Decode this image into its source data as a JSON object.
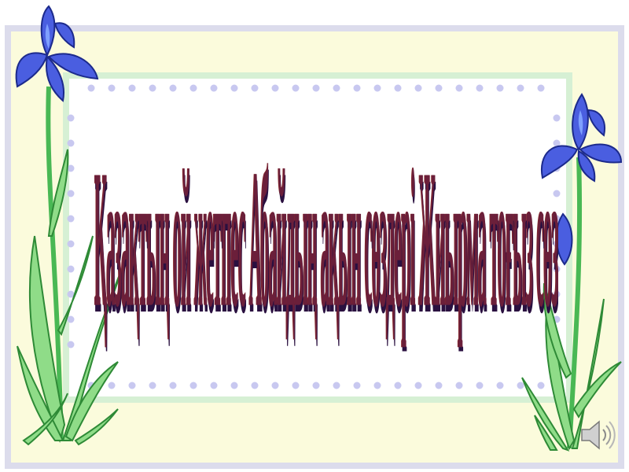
{
  "slide": {
    "title": "Қазақтың ой жетпес Абайдың ақын сөздері Жиырма тоғыз сөз"
  },
  "decor": {
    "frame_color": "#dcdcec",
    "panel_color": "#fbfbdc",
    "inner_border_color": "#d6f0d4",
    "dot_color": "#c8c8f0",
    "iris_color": "#4a5ee0",
    "stem_color": "#3fb04a",
    "title_color": "#6b1f3a"
  },
  "icons": {
    "left_flower": "iris-flower-icon",
    "right_flower": "iris-flower-icon",
    "audio": "speaker-icon"
  }
}
